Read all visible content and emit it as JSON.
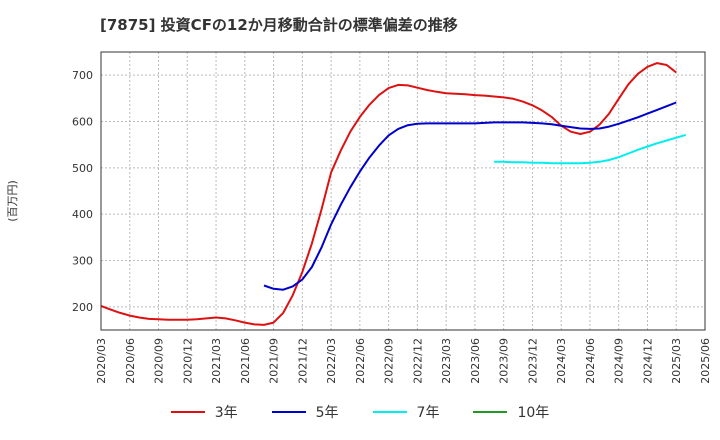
{
  "chart_data": {
    "type": "line",
    "title": "[7875]  投資CFの12か月移動合計の標準偏差の推移",
    "ylabel": "(百万円)",
    "xlabel": "",
    "ylim": [
      150,
      750
    ],
    "yticks": [
      200,
      300,
      400,
      500,
      600,
      700
    ],
    "xlim": [
      "2020/03",
      "2025/06"
    ],
    "xticks": [
      "2020/03",
      "2020/06",
      "2020/09",
      "2020/12",
      "2021/03",
      "2021/06",
      "2021/09",
      "2021/12",
      "2022/03",
      "2022/06",
      "2022/09",
      "2022/12",
      "2023/03",
      "2023/06",
      "2023/09",
      "2023/12",
      "2024/03",
      "2024/06",
      "2024/09",
      "2024/12",
      "2025/03",
      "2025/06"
    ],
    "grid": true,
    "legend_position": "bottom",
    "series": [
      {
        "name": "3年",
        "color": "#dd1111",
        "points": [
          [
            "2020/03",
            202
          ],
          [
            "2020/04",
            194
          ],
          [
            "2020/05",
            187
          ],
          [
            "2020/06",
            181
          ],
          [
            "2020/07",
            177
          ],
          [
            "2020/08",
            174
          ],
          [
            "2020/09",
            173
          ],
          [
            "2020/10",
            172
          ],
          [
            "2020/11",
            172
          ],
          [
            "2020/12",
            172
          ],
          [
            "2021/01",
            173
          ],
          [
            "2021/02",
            175
          ],
          [
            "2021/03",
            177
          ],
          [
            "2021/04",
            175
          ],
          [
            "2021/05",
            171
          ],
          [
            "2021/06",
            166
          ],
          [
            "2021/07",
            162
          ],
          [
            "2021/08",
            161
          ],
          [
            "2021/09",
            166
          ],
          [
            "2021/10",
            187
          ],
          [
            "2021/11",
            225
          ],
          [
            "2021/12",
            275
          ],
          [
            "2022/01",
            337
          ],
          [
            "2022/02",
            410
          ],
          [
            "2022/03",
            490
          ],
          [
            "2022/04",
            537
          ],
          [
            "2022/05",
            578
          ],
          [
            "2022/06",
            610
          ],
          [
            "2022/07",
            636
          ],
          [
            "2022/08",
            657
          ],
          [
            "2022/09",
            672
          ],
          [
            "2022/10",
            679
          ],
          [
            "2022/11",
            678
          ],
          [
            "2022/12",
            673
          ],
          [
            "2023/01",
            668
          ],
          [
            "2023/02",
            664
          ],
          [
            "2023/03",
            661
          ],
          [
            "2023/04",
            660
          ],
          [
            "2023/05",
            659
          ],
          [
            "2023/06",
            657
          ],
          [
            "2023/07",
            656
          ],
          [
            "2023/08",
            654
          ],
          [
            "2023/09",
            652
          ],
          [
            "2023/10",
            649
          ],
          [
            "2023/11",
            643
          ],
          [
            "2023/12",
            635
          ],
          [
            "2024/01",
            624
          ],
          [
            "2024/02",
            610
          ],
          [
            "2024/03",
            591
          ],
          [
            "2024/04",
            578
          ],
          [
            "2024/05",
            573
          ],
          [
            "2024/06",
            578
          ],
          [
            "2024/07",
            593
          ],
          [
            "2024/08",
            617
          ],
          [
            "2024/09",
            649
          ],
          [
            "2024/10",
            680
          ],
          [
            "2024/11",
            703
          ],
          [
            "2024/12",
            718
          ],
          [
            "2025/01",
            726
          ],
          [
            "2025/02",
            722
          ],
          [
            "2025/03",
            706
          ]
        ]
      },
      {
        "name": "5年",
        "color": "#0000cc",
        "points": [
          [
            "2021/08",
            246
          ],
          [
            "2021/09",
            239
          ],
          [
            "2021/10",
            237
          ],
          [
            "2021/11",
            244
          ],
          [
            "2021/12",
            259
          ],
          [
            "2022/01",
            286
          ],
          [
            "2022/02",
            328
          ],
          [
            "2022/03",
            378
          ],
          [
            "2022/04",
            420
          ],
          [
            "2022/05",
            458
          ],
          [
            "2022/06",
            492
          ],
          [
            "2022/07",
            522
          ],
          [
            "2022/08",
            548
          ],
          [
            "2022/09",
            570
          ],
          [
            "2022/10",
            584
          ],
          [
            "2022/11",
            592
          ],
          [
            "2022/12",
            595
          ],
          [
            "2023/01",
            596
          ],
          [
            "2023/02",
            596
          ],
          [
            "2023/03",
            596
          ],
          [
            "2023/04",
            596
          ],
          [
            "2023/05",
            596
          ],
          [
            "2023/06",
            596
          ],
          [
            "2023/07",
            597
          ],
          [
            "2023/08",
            598
          ],
          [
            "2023/09",
            598
          ],
          [
            "2023/10",
            598
          ],
          [
            "2023/11",
            598
          ],
          [
            "2023/12",
            597
          ],
          [
            "2024/01",
            596
          ],
          [
            "2024/02",
            594
          ],
          [
            "2024/03",
            591
          ],
          [
            "2024/04",
            588
          ],
          [
            "2024/05",
            585
          ],
          [
            "2024/06",
            584
          ],
          [
            "2024/07",
            585
          ],
          [
            "2024/08",
            589
          ],
          [
            "2024/09",
            595
          ],
          [
            "2024/10",
            602
          ],
          [
            "2024/11",
            609
          ],
          [
            "2024/12",
            617
          ],
          [
            "2025/01",
            625
          ],
          [
            "2025/02",
            633
          ],
          [
            "2025/03",
            641
          ]
        ]
      },
      {
        "name": "7年",
        "color": "#00eeee",
        "points": [
          [
            "2023/08",
            513
          ],
          [
            "2023/09",
            513
          ],
          [
            "2023/10",
            512
          ],
          [
            "2023/11",
            512
          ],
          [
            "2023/12",
            511
          ],
          [
            "2024/01",
            511
          ],
          [
            "2024/02",
            510
          ],
          [
            "2024/03",
            510
          ],
          [
            "2024/04",
            510
          ],
          [
            "2024/05",
            510
          ],
          [
            "2024/06",
            511
          ],
          [
            "2024/07",
            513
          ],
          [
            "2024/08",
            517
          ],
          [
            "2024/09",
            523
          ],
          [
            "2024/10",
            531
          ],
          [
            "2024/11",
            539
          ],
          [
            "2024/12",
            546
          ],
          [
            "2025/01",
            553
          ],
          [
            "2025/02",
            559
          ],
          [
            "2025/03",
            565
          ],
          [
            "2025/04",
            571
          ]
        ]
      },
      {
        "name": "10年",
        "color": "#229922",
        "points": []
      }
    ]
  }
}
